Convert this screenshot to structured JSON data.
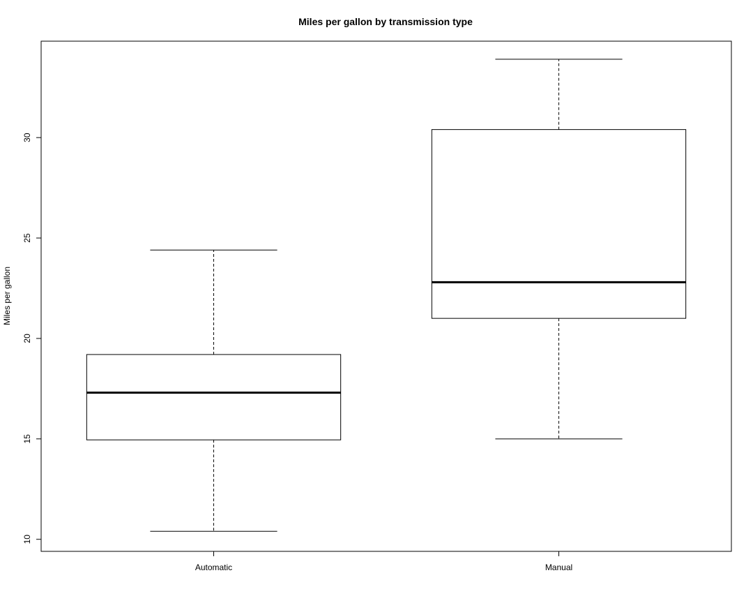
{
  "chart_data": {
    "type": "box",
    "title": "Miles per gallon by transmission type",
    "xlabel": "",
    "ylabel": "Miles per gallon",
    "ylim": [
      9.4,
      34.8
    ],
    "yticks": [
      10,
      15,
      20,
      25,
      30
    ],
    "ytick_labels": [
      "10",
      "15",
      "20",
      "25",
      "30"
    ],
    "grid": false,
    "categories": [
      "Automatic",
      "Manual"
    ],
    "boxes": [
      {
        "name": "Automatic",
        "whisker_low": 10.4,
        "q1": 14.95,
        "median": 17.3,
        "q3": 19.2,
        "whisker_high": 24.4
      },
      {
        "name": "Manual",
        "whisker_low": 15.0,
        "q1": 21.0,
        "median": 22.8,
        "q3": 30.4,
        "whisker_high": 33.9
      }
    ]
  }
}
